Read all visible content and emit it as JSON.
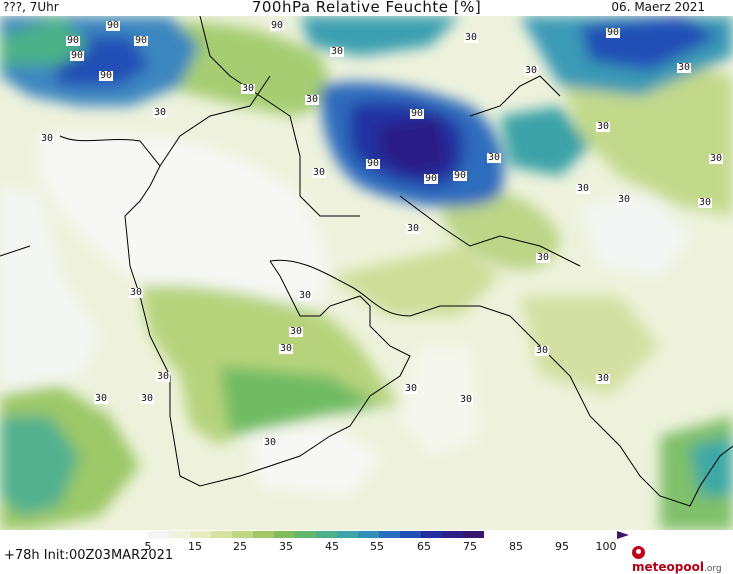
{
  "header": {
    "left": "???, 7Uhr",
    "title": "700hPa Relative Feuchte [%]",
    "date": "06. Maerz 2021"
  },
  "footer": {
    "init": "+78h Init:00Z03MAR2021",
    "brand": "meteopool",
    "brand_tld": ".org",
    "colorbar_labels": [
      "5",
      "15",
      "25",
      "35",
      "45",
      "55",
      "65",
      "75",
      "85",
      "95",
      "100"
    ],
    "colorbar_colors": [
      "#ffffff",
      "#f3f5f5",
      "#eef2dc",
      "#e6ebc0",
      "#d7e29e",
      "#bfd683",
      "#a2c866",
      "#7fbd5c",
      "#63b86e",
      "#4bb088",
      "#3da6a8",
      "#2f8fb6",
      "#2a6fbf",
      "#2450b6",
      "#1f2fa0",
      "#2a1f86",
      "#3a1670"
    ]
  },
  "map": {
    "contour_labels": [
      {
        "text": "90"
      },
      {
        "text": "90"
      },
      {
        "text": "90"
      },
      {
        "text": "90"
      },
      {
        "text": "90"
      },
      {
        "text": "90"
      },
      {
        "text": "90"
      },
      {
        "text": "90"
      },
      {
        "text": "90"
      },
      {
        "text": "90"
      },
      {
        "text": "90"
      },
      {
        "text": "30"
      },
      {
        "text": "30"
      },
      {
        "text": "30"
      },
      {
        "text": "30"
      },
      {
        "text": "30"
      },
      {
        "text": "30"
      },
      {
        "text": "30"
      },
      {
        "text": "30"
      },
      {
        "text": "30"
      },
      {
        "text": "30"
      },
      {
        "text": "30"
      },
      {
        "text": "30"
      },
      {
        "text": "30"
      },
      {
        "text": "30"
      },
      {
        "text": "30"
      },
      {
        "text": "30"
      },
      {
        "text": "30"
      },
      {
        "text": "30"
      },
      {
        "text": "30"
      },
      {
        "text": "30"
      },
      {
        "text": "30"
      },
      {
        "text": "30"
      },
      {
        "text": "30"
      },
      {
        "text": "30"
      },
      {
        "text": "30"
      },
      {
        "text": "30"
      },
      {
        "text": "30"
      },
      {
        "text": "30"
      },
      {
        "text": "30"
      }
    ]
  }
}
